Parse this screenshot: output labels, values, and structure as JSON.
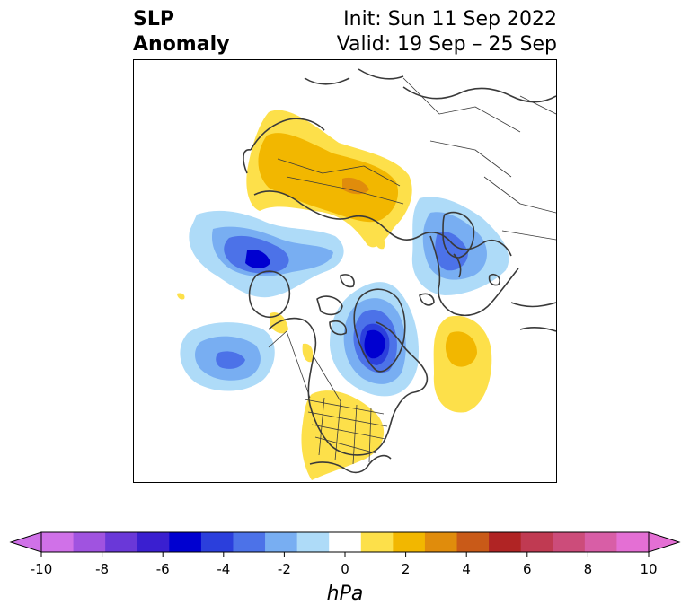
{
  "title": {
    "left_line1": "SLP",
    "left_line2": "Anomaly",
    "init": "Init: Sun 11 Sep 2022",
    "valid": "Valid: 19 Sep – 25 Sep"
  },
  "map": {
    "projection": "north polar stereographic",
    "field": "sea level pressure anomaly",
    "coastline_color": "#3a3a3a",
    "features": [
      {
        "name": "positive anomaly over northern Eurasia / Siberia",
        "sign": "positive",
        "peak_hPa": 4
      },
      {
        "name": "negative anomaly over Bering Sea / Chukotka",
        "sign": "negative",
        "peak_hPa": -6
      },
      {
        "name": "negative anomaly over Scandinavia / Barents Sea",
        "sign": "negative",
        "peak_hPa": -5
      },
      {
        "name": "negative anomaly over Greenland / Canadian Arctic",
        "sign": "negative",
        "peak_hPa": -7
      },
      {
        "name": "negative anomaly over Gulf of Alaska",
        "sign": "negative",
        "peak_hPa": -5
      },
      {
        "name": "positive anomaly over North Atlantic",
        "sign": "positive",
        "peak_hPa": 2
      },
      {
        "name": "positive anomaly over eastern United States",
        "sign": "positive",
        "peak_hPa": 1
      }
    ]
  },
  "colorbar": {
    "label": "hPa",
    "ticks": [
      "-10",
      "-8",
      "-6",
      "-4",
      "-2",
      "0",
      "2",
      "4",
      "6",
      "8",
      "10"
    ],
    "levels": [
      -10,
      -9,
      -8,
      -7,
      -6,
      -5,
      -4,
      -3,
      -2,
      -1,
      1,
      2,
      3,
      4,
      5,
      6,
      7,
      8,
      9,
      10
    ],
    "colors": [
      "#d071e8",
      "#a053e0",
      "#6a38d8",
      "#3a1fd0",
      "#0000d0",
      "#2b3fdc",
      "#4c72e8",
      "#78aef2",
      "#aedbf8",
      "#ffffff",
      "#fde04a",
      "#f2b700",
      "#e08c0c",
      "#c95a18",
      "#b02424",
      "#c03a52",
      "#cc4c7a",
      "#d85ea6",
      "#e46fd4"
    ],
    "extend_min_color": "#d071e8",
    "extend_max_color": "#e46fd4"
  }
}
